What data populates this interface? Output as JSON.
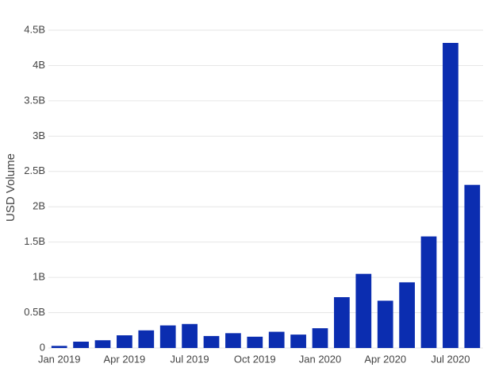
{
  "chart_data": {
    "type": "bar",
    "y_label": "USD Volume",
    "categories": [
      "Jan 2019",
      null,
      null,
      "Apr 2019",
      null,
      null,
      "Jul 2019",
      null,
      null,
      "Oct 2019",
      null,
      null,
      "Jan 2020",
      null,
      null,
      "Apr 2020",
      null,
      null,
      "Jul 2020",
      null
    ],
    "values": [
      30000000,
      90000000,
      110000000,
      180000000,
      250000000,
      320000000,
      340000000,
      170000000,
      210000000,
      160000000,
      230000000,
      190000000,
      280000000,
      720000000,
      1050000000,
      670000000,
      930000000,
      1580000000,
      4320000000,
      2310000000
    ],
    "color": "#0b2db0",
    "ylim": [
      0,
      4500000000
    ],
    "yticks": [
      0,
      {
        "value": 500000000,
        "label": "0.5B"
      },
      {
        "value": 1000000000,
        "label": "1B"
      },
      {
        "value": 1500000000,
        "label": "1.5B"
      },
      {
        "value": 2000000000,
        "label": "2B"
      },
      {
        "value": 2500000000,
        "label": "2.5B"
      },
      {
        "value": 3000000000,
        "label": "3B"
      },
      {
        "value": 3500000000,
        "label": "3.5B"
      },
      {
        "value": 4000000000,
        "label": "4B"
      },
      {
        "value": 4500000000,
        "label": "4.5B"
      }
    ],
    "grid": true
  }
}
